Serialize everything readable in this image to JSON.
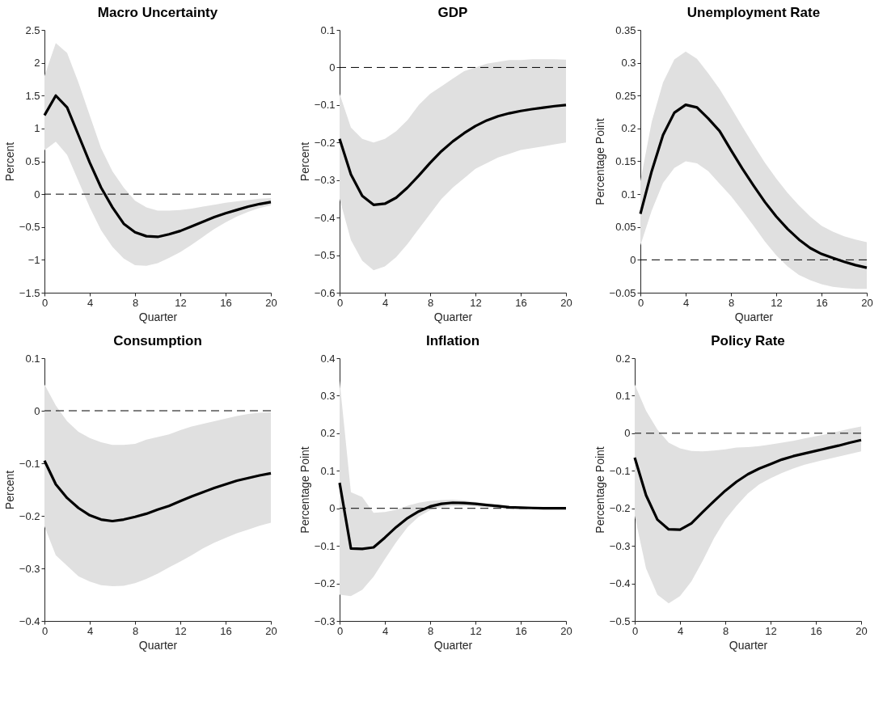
{
  "chart_data": [
    {
      "type": "line",
      "title": "Macro Uncertainty",
      "xlabel": "Quarter",
      "ylabel": "Percent",
      "x": [
        0,
        1,
        2,
        3,
        4,
        5,
        6,
        7,
        8,
        9,
        10,
        11,
        12,
        13,
        14,
        15,
        16,
        17,
        18,
        19,
        20
      ],
      "xlim": [
        0,
        20
      ],
      "xticks": [
        0,
        4,
        8,
        12,
        16,
        20
      ],
      "ylim": [
        -1.5,
        2.5
      ],
      "yticks": [
        -1.5,
        -1,
        -0.5,
        0,
        0.5,
        1,
        1.5,
        2,
        2.5
      ],
      "series": [
        {
          "color": "#000000",
          "values": [
            1.2,
            1.5,
            1.32,
            0.9,
            0.48,
            0.1,
            -0.2,
            -0.45,
            -0.58,
            -0.64,
            -0.65,
            -0.61,
            -0.56,
            -0.49,
            -0.42,
            -0.35,
            -0.29,
            -0.24,
            -0.19,
            -0.15,
            -0.12
          ],
          "upper": [
            1.8,
            2.3,
            2.15,
            1.7,
            1.2,
            0.7,
            0.35,
            0.1,
            -0.1,
            -0.2,
            -0.25,
            -0.25,
            -0.24,
            -0.22,
            -0.19,
            -0.16,
            -0.13,
            -0.11,
            -0.09,
            -0.07,
            -0.06
          ],
          "lower": [
            0.67,
            0.8,
            0.6,
            0.2,
            -0.2,
            -0.55,
            -0.8,
            -0.98,
            -1.08,
            -1.09,
            -1.05,
            -0.97,
            -0.88,
            -0.77,
            -0.65,
            -0.53,
            -0.43,
            -0.34,
            -0.27,
            -0.21,
            -0.17
          ]
        }
      ],
      "ref_lines": [
        {
          "axis": "y",
          "value": 0,
          "color": "#000000",
          "line_style": "dashed"
        }
      ]
    },
    {
      "type": "line",
      "title": "GDP",
      "xlabel": "Quarter",
      "ylabel": "Percent",
      "x": [
        0,
        1,
        2,
        3,
        4,
        5,
        6,
        7,
        8,
        9,
        10,
        11,
        12,
        13,
        14,
        15,
        16,
        17,
        18,
        19,
        20
      ],
      "xlim": [
        0,
        20
      ],
      "xticks": [
        0,
        4,
        8,
        12,
        16,
        20
      ],
      "ylim": [
        -0.6,
        0.1
      ],
      "yticks": [
        -0.6,
        -0.5,
        -0.4,
        -0.3,
        -0.2,
        -0.1,
        0,
        0.1
      ],
      "series": [
        {
          "color": "#000000",
          "values": [
            -0.19,
            -0.285,
            -0.342,
            -0.366,
            -0.363,
            -0.347,
            -0.32,
            -0.288,
            -0.254,
            -0.223,
            -0.197,
            -0.175,
            -0.156,
            -0.141,
            -0.13,
            -0.122,
            -0.116,
            -0.111,
            -0.107,
            -0.103,
            -0.1
          ],
          "upper": [
            -0.07,
            -0.16,
            -0.19,
            -0.2,
            -0.19,
            -0.17,
            -0.14,
            -0.1,
            -0.07,
            -0.05,
            -0.03,
            -0.01,
            0,
            0.01,
            0.015,
            0.02,
            0.02,
            0.022,
            0.022,
            0.022,
            0.021
          ],
          "lower": [
            -0.35,
            -0.46,
            -0.515,
            -0.54,
            -0.53,
            -0.505,
            -0.47,
            -0.43,
            -0.39,
            -0.35,
            -0.32,
            -0.295,
            -0.27,
            -0.255,
            -0.24,
            -0.23,
            -0.22,
            -0.215,
            -0.21,
            -0.205,
            -0.2
          ]
        }
      ],
      "ref_lines": [
        {
          "axis": "y",
          "value": 0,
          "color": "#000000",
          "line_style": "dashed"
        }
      ]
    },
    {
      "type": "line",
      "title": "Unemployment Rate",
      "xlabel": "Quarter",
      "ylabel": "Percentage Point",
      "x": [
        0,
        1,
        2,
        3,
        4,
        5,
        6,
        7,
        8,
        9,
        10,
        11,
        12,
        13,
        14,
        15,
        16,
        17,
        18,
        19,
        20
      ],
      "xlim": [
        0,
        20
      ],
      "xticks": [
        0,
        4,
        8,
        12,
        16,
        20
      ],
      "ylim": [
        -0.05,
        0.35
      ],
      "yticks": [
        -0.05,
        0,
        0.05,
        0.1,
        0.15,
        0.2,
        0.25,
        0.3,
        0.35
      ],
      "series": [
        {
          "color": "#000000",
          "values": [
            0.07,
            0.135,
            0.19,
            0.224,
            0.236,
            0.232,
            0.215,
            0.196,
            0.167,
            0.139,
            0.113,
            0.088,
            0.066,
            0.047,
            0.031,
            0.018,
            0.009,
            0.003,
            -0.003,
            -0.008,
            -0.012
          ],
          "upper": [
            0.12,
            0.21,
            0.27,
            0.305,
            0.317,
            0.306,
            0.284,
            0.26,
            0.232,
            0.203,
            0.175,
            0.148,
            0.124,
            0.102,
            0.083,
            0.066,
            0.052,
            0.043,
            0.036,
            0.031,
            0.027
          ],
          "lower": [
            0.022,
            0.075,
            0.117,
            0.14,
            0.15,
            0.147,
            0.135,
            0.116,
            0.097,
            0.075,
            0.052,
            0.028,
            0.007,
            -0.01,
            -0.023,
            -0.031,
            -0.037,
            -0.041,
            -0.043,
            -0.044,
            -0.044
          ]
        }
      ],
      "ref_lines": [
        {
          "axis": "y",
          "value": 0,
          "color": "#000000",
          "line_style": "dashed"
        }
      ]
    },
    {
      "type": "line",
      "title": "Consumption",
      "xlabel": "Quarter",
      "ylabel": "Percent",
      "x": [
        0,
        1,
        2,
        3,
        4,
        5,
        6,
        7,
        8,
        9,
        10,
        11,
        12,
        13,
        14,
        15,
        16,
        17,
        18,
        19,
        20
      ],
      "xlim": [
        0,
        20
      ],
      "xticks": [
        0,
        4,
        8,
        12,
        16,
        20
      ],
      "ylim": [
        -0.4,
        0.1
      ],
      "yticks": [
        -0.4,
        -0.3,
        -0.2,
        -0.1,
        0,
        0.1
      ],
      "series": [
        {
          "color": "#000000",
          "values": [
            -0.095,
            -0.14,
            -0.166,
            -0.185,
            -0.199,
            -0.207,
            -0.21,
            -0.207,
            -0.202,
            -0.196,
            -0.188,
            -0.181,
            -0.172,
            -0.163,
            -0.155,
            -0.147,
            -0.14,
            -0.133,
            -0.128,
            -0.123,
            -0.119
          ],
          "upper": [
            0.05,
            0.01,
            -0.02,
            -0.04,
            -0.052,
            -0.06,
            -0.065,
            -0.065,
            -0.063,
            -0.055,
            -0.05,
            -0.045,
            -0.037,
            -0.03,
            -0.025,
            -0.02,
            -0.015,
            -0.01,
            -0.006,
            -0.004,
            -0.003
          ],
          "lower": [
            -0.22,
            -0.275,
            -0.295,
            -0.315,
            -0.325,
            -0.332,
            -0.334,
            -0.333,
            -0.328,
            -0.32,
            -0.31,
            -0.298,
            -0.287,
            -0.275,
            -0.262,
            -0.251,
            -0.242,
            -0.233,
            -0.226,
            -0.219,
            -0.213
          ]
        }
      ],
      "ref_lines": [
        {
          "axis": "y",
          "value": 0,
          "color": "#000000",
          "line_style": "dashed"
        }
      ]
    },
    {
      "type": "line",
      "title": "Inflation",
      "xlabel": "Quarter",
      "ylabel": "Percentage Point",
      "x": [
        0,
        1,
        2,
        3,
        4,
        5,
        6,
        7,
        8,
        9,
        10,
        11,
        12,
        13,
        14,
        15,
        16,
        17,
        18,
        19,
        20
      ],
      "xlim": [
        0,
        20
      ],
      "xticks": [
        0,
        4,
        8,
        12,
        16,
        20
      ],
      "ylim": [
        -0.3,
        0.4
      ],
      "yticks": [
        -0.3,
        -0.2,
        -0.1,
        0,
        0.1,
        0.2,
        0.3,
        0.4
      ],
      "series": [
        {
          "color": "#000000",
          "values": [
            0.068,
            -0.107,
            -0.108,
            -0.104,
            -0.078,
            -0.05,
            -0.026,
            -0.008,
            0.005,
            0.012,
            0.015,
            0.014,
            0.012,
            0.009,
            0.006,
            0.003,
            0.002,
            0.001,
            0,
            0,
            0
          ],
          "upper": [
            0.34,
            0.043,
            0.03,
            -0.012,
            -0.01,
            -0.004,
            0.007,
            0.015,
            0.02,
            0.022,
            0.023,
            0.021,
            0.017,
            0.013,
            0.009,
            0.006,
            0.004,
            0.003,
            0.002,
            0.001,
            0.001
          ],
          "lower": [
            -0.23,
            -0.234,
            -0.217,
            -0.182,
            -0.135,
            -0.09,
            -0.05,
            -0.022,
            -0.005,
            0.003,
            0.006,
            0.006,
            0.005,
            0.003,
            0.001,
            0,
            -0.001,
            -0.001,
            -0.001,
            -0.001,
            -0.001
          ]
        }
      ],
      "ref_lines": [
        {
          "axis": "y",
          "value": 0,
          "color": "#000000",
          "line_style": "dashed"
        }
      ]
    },
    {
      "type": "line",
      "title": "Policy Rate",
      "xlabel": "Quarter",
      "ylabel": "Percentage Point",
      "x": [
        0,
        1,
        2,
        3,
        4,
        5,
        6,
        7,
        8,
        9,
        10,
        11,
        12,
        13,
        14,
        15,
        16,
        17,
        18,
        19,
        20
      ],
      "xlim": [
        0,
        20
      ],
      "xticks": [
        0,
        4,
        8,
        12,
        16,
        20
      ],
      "ylim": [
        -0.5,
        0.2
      ],
      "yticks": [
        -0.5,
        -0.4,
        -0.3,
        -0.2,
        -0.1,
        0,
        0.1,
        0.2
      ],
      "series": [
        {
          "color": "#000000",
          "values": [
            -0.065,
            -0.165,
            -0.23,
            -0.256,
            -0.257,
            -0.24,
            -0.21,
            -0.181,
            -0.153,
            -0.129,
            -0.109,
            -0.094,
            -0.082,
            -0.07,
            -0.061,
            -0.054,
            -0.047,
            -0.04,
            -0.033,
            -0.025,
            -0.018
          ],
          "upper": [
            0.13,
            0.06,
            0.01,
            -0.025,
            -0.04,
            -0.047,
            -0.048,
            -0.046,
            -0.043,
            -0.038,
            -0.037,
            -0.034,
            -0.03,
            -0.025,
            -0.02,
            -0.014,
            -0.008,
            -0.002,
            0.005,
            0.012,
            0.018
          ],
          "lower": [
            -0.22,
            -0.36,
            -0.43,
            -0.453,
            -0.434,
            -0.395,
            -0.34,
            -0.28,
            -0.23,
            -0.193,
            -0.16,
            -0.136,
            -0.12,
            -0.106,
            -0.094,
            -0.084,
            -0.076,
            -0.069,
            -0.062,
            -0.055,
            -0.048
          ]
        }
      ],
      "ref_lines": [
        {
          "axis": "y",
          "value": 0,
          "color": "#000000",
          "line_style": "dashed"
        }
      ]
    }
  ]
}
